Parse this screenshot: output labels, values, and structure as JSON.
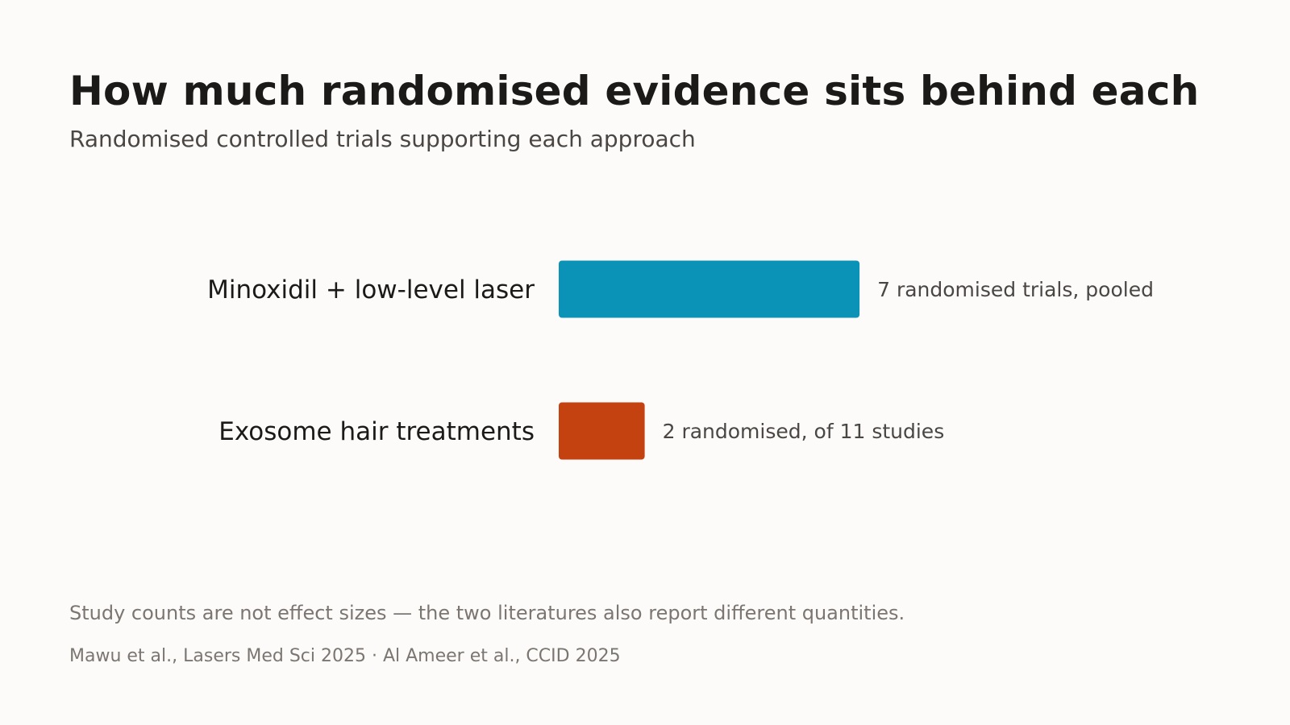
{
  "title": "How much randomised evidence sits behind each",
  "subtitle": "Randomised controlled trials supporting each approach",
  "chart_data": {
    "type": "bar",
    "orientation": "horizontal",
    "categories": [
      "Minoxidil + low-level laser",
      "Exosome hair treatments"
    ],
    "values": [
      7,
      2
    ],
    "value_labels": [
      "7 randomised trials, pooled",
      "2 randomised, of 11 studies"
    ],
    "colors": [
      "#0a93b6",
      "#c44110"
    ],
    "grid": false,
    "axes_visible": false
  },
  "footnote": "Study counts are not effect sizes — the two literatures also report different quantities.",
  "source": "Mawu et al., Lasers Med Sci 2025 · Al Ameer et al., CCID 2025"
}
